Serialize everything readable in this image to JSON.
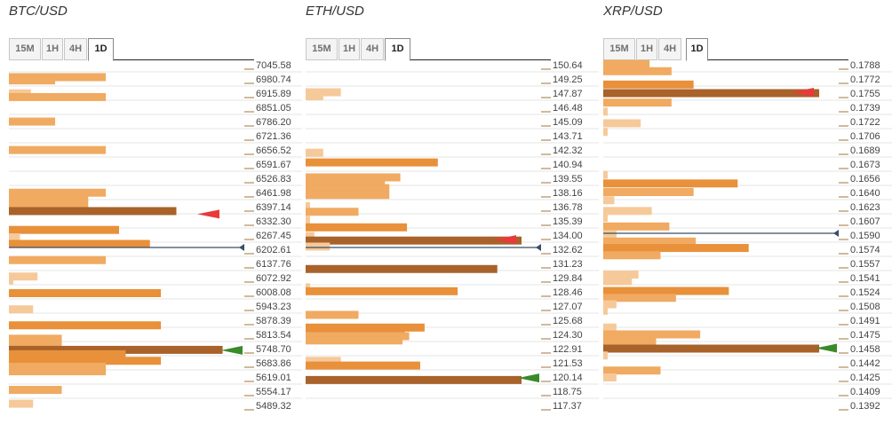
{
  "chart_data": [
    {
      "type": "bar",
      "title": "BTC/USD",
      "timeframes": [
        "15M",
        "1H",
        "4H",
        "1D"
      ],
      "active_timeframe": "1D",
      "y_labels": [
        "7045.58",
        "6980.74",
        "6915.89",
        "6851.05",
        "6786.20",
        "6721.36",
        "6656.52",
        "6591.67",
        "6526.83",
        "6461.98",
        "6397.14",
        "6332.30",
        "6267.45",
        "6202.61",
        "6137.76",
        "6072.92",
        "6008.08",
        "5943.23",
        "5878.39",
        "5813.54",
        "5748.70",
        "5683.86",
        "5619.01",
        "5554.17",
        "5489.32"
      ],
      "ylim": [
        5489.32,
        7045.58
      ],
      "current_price": 6202.61,
      "bars": [
        {
          "level": 6989,
          "value": 0.44,
          "tone": 2
        },
        {
          "level": 6974,
          "value": 0.21,
          "tone": 2
        },
        {
          "level": 6915,
          "value": 0.1,
          "tone": 1
        },
        {
          "level": 6898,
          "value": 0.44,
          "tone": 2
        },
        {
          "level": 6786,
          "value": 0.21,
          "tone": 2
        },
        {
          "level": 6656,
          "value": 0.44,
          "tone": 2
        },
        {
          "level": 6461,
          "value": 0.44,
          "tone": 2
        },
        {
          "level": 6440,
          "value": 0.36,
          "tone": 2
        },
        {
          "level": 6413,
          "value": 0.36,
          "tone": 2
        },
        {
          "level": 6377,
          "value": 0.76,
          "tone": 4
        },
        {
          "level": 6291,
          "value": 0.5,
          "tone": 3
        },
        {
          "level": 6257,
          "value": 0.05,
          "tone": 1
        },
        {
          "level": 6227,
          "value": 0.64,
          "tone": 3
        },
        {
          "level": 6153,
          "value": 0.44,
          "tone": 2
        },
        {
          "level": 6078,
          "value": 0.13,
          "tone": 1
        },
        {
          "level": 6060,
          "value": 0.02,
          "tone": 1
        },
        {
          "level": 6002,
          "value": 0.69,
          "tone": 3
        },
        {
          "level": 5928,
          "value": 0.11,
          "tone": 1
        },
        {
          "level": 5855,
          "value": 0.69,
          "tone": 3
        },
        {
          "level": 5794,
          "value": 0.24,
          "tone": 2
        },
        {
          "level": 5767,
          "value": 0.24,
          "tone": 2
        },
        {
          "level": 5743,
          "value": 0.97,
          "tone": 4
        },
        {
          "level": 5723,
          "value": 0.53,
          "tone": 3
        },
        {
          "level": 5693,
          "value": 0.69,
          "tone": 3
        },
        {
          "level": 5666,
          "value": 0.44,
          "tone": 2
        },
        {
          "level": 5645,
          "value": 0.44,
          "tone": 2
        },
        {
          "level": 5560,
          "value": 0.24,
          "tone": 2
        },
        {
          "level": 5497,
          "value": 0.11,
          "tone": 1
        }
      ],
      "resistance_marker": 6363,
      "support_marker": 5741
    },
    {
      "type": "bar",
      "title": "ETH/USD",
      "timeframes": [
        "15M",
        "1H",
        "4H",
        "1D"
      ],
      "active_timeframe": "1D",
      "y_labels": [
        "150.64",
        "149.25",
        "147.87",
        "146.48",
        "145.09",
        "143.71",
        "142.32",
        "140.94",
        "139.55",
        "138.16",
        "136.78",
        "135.39",
        "134.00",
        "132.62",
        "131.23",
        "129.84",
        "128.46",
        "127.07",
        "125.68",
        "124.30",
        "122.91",
        "121.53",
        "120.14",
        "118.75",
        "117.37"
      ],
      "ylim": [
        117.37,
        150.64
      ],
      "current_price": 132.62,
      "bars": [
        {
          "level": 147.95,
          "value": 0.16,
          "tone": 1
        },
        {
          "level": 147.56,
          "value": 0.08,
          "tone": 1
        },
        {
          "level": 142.05,
          "value": 0.08,
          "tone": 1
        },
        {
          "level": 141.1,
          "value": 0.6,
          "tone": 3
        },
        {
          "level": 139.64,
          "value": 0.43,
          "tone": 2
        },
        {
          "level": 139.04,
          "value": 0.36,
          "tone": 2
        },
        {
          "level": 138.59,
          "value": 0.38,
          "tone": 2
        },
        {
          "level": 137.92,
          "value": 0.38,
          "tone": 2
        },
        {
          "level": 136.83,
          "value": 0.02,
          "tone": 1
        },
        {
          "level": 136.28,
          "value": 0.24,
          "tone": 2
        },
        {
          "level": 135.48,
          "value": 0.02,
          "tone": 1
        },
        {
          "level": 134.76,
          "value": 0.46,
          "tone": 3
        },
        {
          "level": 133.91,
          "value": 0.04,
          "tone": 1
        },
        {
          "level": 133.47,
          "value": 0.98,
          "tone": 4
        },
        {
          "level": 132.88,
          "value": 0.11,
          "tone": 1
        },
        {
          "level": 130.69,
          "value": 0.87,
          "tone": 4
        },
        {
          "level": 128.9,
          "value": 0.02,
          "tone": 1
        },
        {
          "level": 128.52,
          "value": 0.69,
          "tone": 3
        },
        {
          "level": 126.21,
          "value": 0.24,
          "tone": 2
        },
        {
          "level": 124.97,
          "value": 0.54,
          "tone": 3
        },
        {
          "level": 124.55,
          "value": 0.45,
          "tone": 3
        },
        {
          "level": 124.13,
          "value": 0.47,
          "tone": 2
        },
        {
          "level": 123.71,
          "value": 0.44,
          "tone": 2
        },
        {
          "level": 121.72,
          "value": 0.16,
          "tone": 1
        },
        {
          "level": 121.26,
          "value": 0.52,
          "tone": 3
        },
        {
          "level": 119.85,
          "value": 0.98,
          "tone": 4
        }
      ],
      "resistance_marker": 133.56,
      "support_marker": 120.04
    },
    {
      "type": "bar",
      "title": "XRP/USD",
      "timeframes": [
        "15M",
        "1H",
        "4H",
        "1D"
      ],
      "active_timeframe": "1D",
      "y_labels": [
        "0.1788",
        "0.1772",
        "0.1755",
        "0.1739",
        "0.1722",
        "0.1706",
        "0.1689",
        "0.1673",
        "0.1656",
        "0.1640",
        "0.1623",
        "0.1607",
        "0.1590",
        "0.1574",
        "0.1557",
        "0.1541",
        "0.1524",
        "0.1508",
        "0.1491",
        "0.1475",
        "0.1458",
        "0.1442",
        "0.1425",
        "0.1409",
        "0.1392"
      ],
      "ylim": [
        0.1392,
        0.1788
      ],
      "current_price": 0.159,
      "bars": [
        {
          "level": 0.1789,
          "value": 0.21,
          "tone": 2
        },
        {
          "level": 0.17805,
          "value": 0.31,
          "tone": 2
        },
        {
          "level": 0.1765,
          "value": 0.41,
          "tone": 3
        },
        {
          "level": 0.1755,
          "value": 0.98,
          "tone": 4
        },
        {
          "level": 0.1744,
          "value": 0.31,
          "tone": 2
        },
        {
          "level": 0.17335,
          "value": 0.02,
          "tone": 1
        },
        {
          "level": 0.172,
          "value": 0.17,
          "tone": 1
        },
        {
          "level": 0.171,
          "value": 0.02,
          "tone": 1
        },
        {
          "level": 0.166,
          "value": 0.02,
          "tone": 1
        },
        {
          "level": 0.165,
          "value": 0.61,
          "tone": 3
        },
        {
          "level": 0.164,
          "value": 0.41,
          "tone": 2
        },
        {
          "level": 0.16305,
          "value": 0.05,
          "tone": 1
        },
        {
          "level": 0.1618,
          "value": 0.22,
          "tone": 1
        },
        {
          "level": 0.161,
          "value": 0.02,
          "tone": 1
        },
        {
          "level": 0.16,
          "value": 0.3,
          "tone": 2
        },
        {
          "level": 0.15905,
          "value": 0.06,
          "tone": 1
        },
        {
          "level": 0.15825,
          "value": 0.42,
          "tone": 2
        },
        {
          "level": 0.1575,
          "value": 0.66,
          "tone": 3
        },
        {
          "level": 0.15665,
          "value": 0.26,
          "tone": 2
        },
        {
          "level": 0.1544,
          "value": 0.16,
          "tone": 1
        },
        {
          "level": 0.15365,
          "value": 0.13,
          "tone": 1
        },
        {
          "level": 0.1525,
          "value": 0.57,
          "tone": 3
        },
        {
          "level": 0.1517,
          "value": 0.33,
          "tone": 2
        },
        {
          "level": 0.15095,
          "value": 0.06,
          "tone": 1
        },
        {
          "level": 0.1502,
          "value": 0.02,
          "tone": 1
        },
        {
          "level": 0.14825,
          "value": 0.06,
          "tone": 1
        },
        {
          "level": 0.14745,
          "value": 0.44,
          "tone": 2
        },
        {
          "level": 0.14665,
          "value": 0.24,
          "tone": 2
        },
        {
          "level": 0.1458,
          "value": 0.98,
          "tone": 4
        },
        {
          "level": 0.145,
          "value": 0.02,
          "tone": 1
        },
        {
          "level": 0.14325,
          "value": 0.26,
          "tone": 2
        },
        {
          "level": 0.14245,
          "value": 0.06,
          "tone": 1
        }
      ],
      "resistance_marker": 0.1756,
      "support_marker": 0.14585
    }
  ],
  "colors": {
    "tone1": "#f6c99a",
    "tone2": "#f0aa61",
    "tone3": "#e8903a",
    "tone4": "#a8622a",
    "resistance_arrow": "#e83a3a",
    "support_arrow": "#3a8a2a",
    "price_line": "#3b4d66",
    "grid": "#e6e6e6",
    "tick": "#a0763a"
  }
}
